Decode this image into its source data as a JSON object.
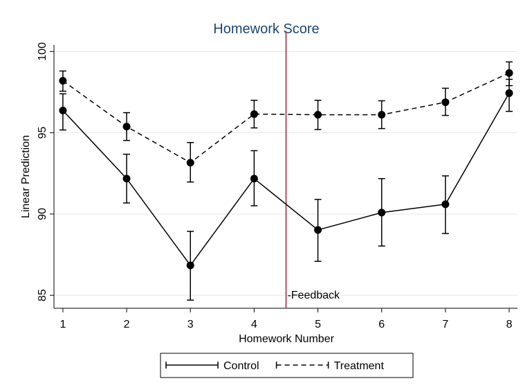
{
  "chart_data": {
    "type": "line",
    "title": "Homework Score",
    "xlabel": "Homework Number",
    "ylabel": "Linear Prediction",
    "x": [
      1,
      2,
      3,
      4,
      5,
      6,
      7,
      8
    ],
    "xlim": [
      0.86,
      8.13
    ],
    "xticks": [
      1,
      2,
      3,
      4,
      5,
      6,
      7,
      8
    ],
    "ylim": [
      84.2,
      100.4
    ],
    "yticks": [
      85,
      90,
      95,
      100
    ],
    "grid": true,
    "legend": "bottom",
    "series": [
      {
        "name": "Control",
        "color": "#000000",
        "dash": "solid",
        "values": [
          96.37,
          92.18,
          86.84,
          92.18,
          89.02,
          90.09,
          90.6,
          97.44
        ],
        "ci_low": [
          95.17,
          90.68,
          84.7,
          90.51,
          87.09,
          88.03,
          88.8,
          96.32
        ],
        "ci_high": [
          97.4,
          93.68,
          88.93,
          93.9,
          90.9,
          92.18,
          92.35,
          98.29
        ]
      },
      {
        "name": "Treatment",
        "color": "#000000",
        "dash": "dashed",
        "values": [
          98.2,
          95.38,
          93.16,
          96.15,
          96.11,
          96.11,
          96.88,
          98.68
        ],
        "ci_low": [
          97.56,
          94.53,
          91.97,
          95.3,
          95.2,
          95.26,
          96.07,
          97.9
        ],
        "ci_high": [
          98.8,
          96.24,
          94.4,
          97.0,
          97.0,
          96.97,
          97.74,
          99.36
        ]
      }
    ],
    "vline": {
      "x": 4.5,
      "color": "#a0203a",
      "label": "-Feedback"
    }
  }
}
